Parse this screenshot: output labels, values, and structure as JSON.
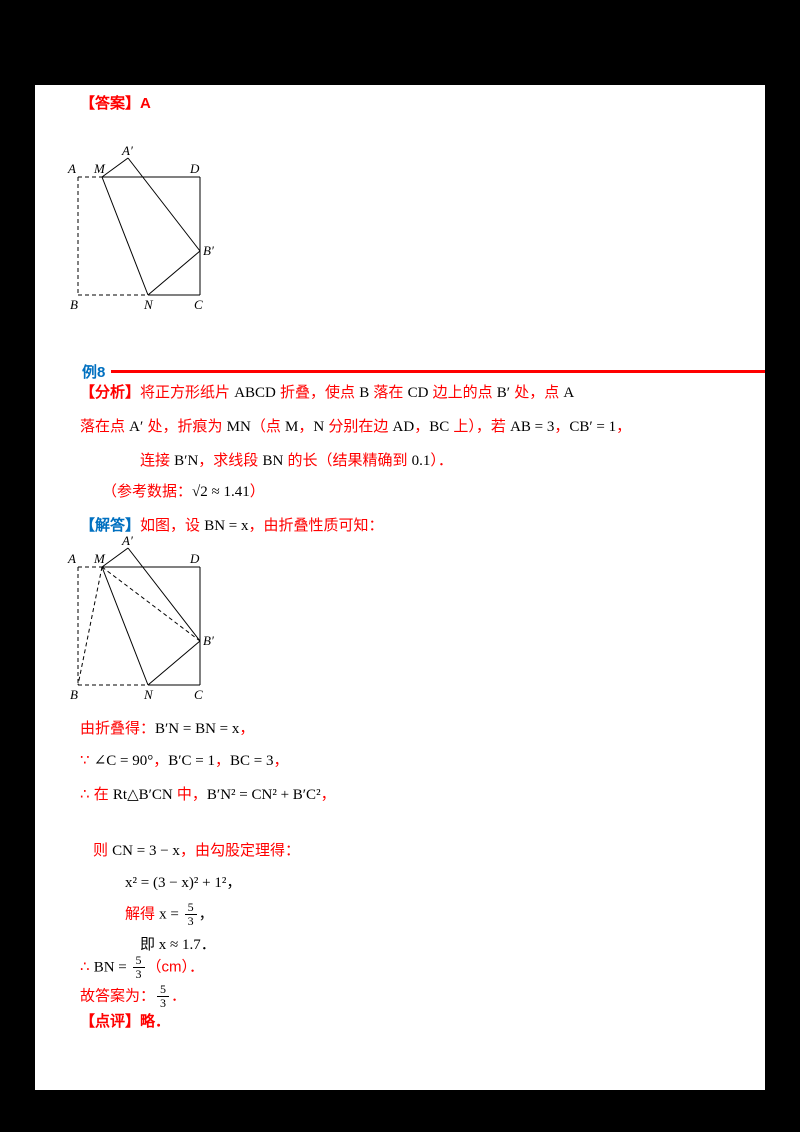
{
  "top": {
    "answer_tag": "【答案】A"
  },
  "divider": {
    "label": "例8"
  },
  "figure": {
    "labels": {
      "a": "A",
      "m": "M",
      "a_prime": "A′",
      "d": "D",
      "b_prime": "B′",
      "b": "B",
      "n": "N",
      "c": "C"
    }
  },
  "problem": {
    "l1": [
      {
        "t": "【分析】",
        "c": "tag"
      },
      {
        "t": "将正方形纸片 ",
        "c": "red"
      },
      {
        "t": "ABCD",
        "c": "blk"
      },
      {
        "t": " 折叠，使点 ",
        "c": "red"
      },
      {
        "t": "B",
        "c": "blk"
      },
      {
        "t": " 落在 ",
        "c": "red"
      },
      {
        "t": "CD",
        "c": "blk"
      },
      {
        "t": " 边上的点 ",
        "c": "red"
      },
      {
        "t": "B′",
        "c": "blk"
      },
      {
        "t": " 处，点 ",
        "c": "red"
      },
      {
        "t": "A",
        "c": "blk"
      }
    ],
    "l2": [
      {
        "t": "落在点 ",
        "c": "red"
      },
      {
        "t": "A′",
        "c": "blk"
      },
      {
        "t": " 处，折痕为 ",
        "c": "red"
      },
      {
        "t": "MN",
        "c": "blk"
      },
      {
        "t": "（点 ",
        "c": "red"
      },
      {
        "t": "M",
        "c": "blk"
      },
      {
        "t": "，",
        "c": "red"
      },
      {
        "t": "N",
        "c": "blk"
      },
      {
        "t": " 分别在边 ",
        "c": "red"
      },
      {
        "t": "AD",
        "c": "blk"
      },
      {
        "t": "，",
        "c": "red"
      },
      {
        "t": "BC",
        "c": "blk"
      },
      {
        "t": " 上），若 ",
        "c": "red"
      },
      {
        "t": "AB = 3",
        "c": "blk"
      },
      {
        "t": "，",
        "c": "red"
      },
      {
        "t": "CB′ = 1",
        "c": "blk"
      },
      {
        "t": "，",
        "c": "red"
      }
    ],
    "l3": [
      {
        "t": "连接 ",
        "c": "red"
      },
      {
        "t": "B′N",
        "c": "blk"
      },
      {
        "t": "，求线段 ",
        "c": "red"
      },
      {
        "t": "BN",
        "c": "blk"
      },
      {
        "t": " 的长（结果精确到 ",
        "c": "red"
      },
      {
        "t": "0.1",
        "c": "blk"
      },
      {
        "t": "）．",
        "c": "red"
      }
    ],
    "l4": [
      {
        "t": "（参考数据：",
        "c": "red"
      },
      {
        "t": "√2 ≈ 1.41",
        "c": "blk"
      },
      {
        "t": "）",
        "c": "red"
      }
    ]
  },
  "solution": {
    "head": [
      {
        "t": "【解答】",
        "c": "blue"
      },
      {
        "t": "如图，设 ",
        "c": "red"
      },
      {
        "t": "BN = x",
        "c": "blk"
      },
      {
        "t": "，由折叠性质可知：",
        "c": "red"
      }
    ],
    "e1": [
      {
        "t": "由折叠得：",
        "c": "red"
      },
      {
        "t": "B′N = BN = x",
        "c": "blk"
      },
      {
        "t": "，",
        "c": "red"
      }
    ],
    "e2": [
      {
        "t": "∵ ",
        "c": "red"
      },
      {
        "t": "∠C = 90°",
        "c": "blk"
      },
      {
        "t": "，",
        "c": "red"
      },
      {
        "t": "B′C = 1",
        "c": "blk"
      },
      {
        "t": "，",
        "c": "red"
      },
      {
        "t": "BC = 3",
        "c": "blk"
      },
      {
        "t": "，",
        "c": "red"
      }
    ],
    "e3": [
      {
        "t": "∴ 在 ",
        "c": "red"
      },
      {
        "t": "Rt△B′CN",
        "c": "blk"
      },
      {
        "t": " 中，",
        "c": "red"
      },
      {
        "t": "B′N² = CN² + B′C²",
        "c": "blk"
      },
      {
        "t": "，",
        "c": "red"
      }
    ],
    "e4": [
      {
        "t": "则 ",
        "c": "red"
      },
      {
        "t": "CN = 3 − x",
        "c": "blk"
      },
      {
        "t": "，由勾股定理得：",
        "c": "red"
      }
    ],
    "f1": [
      {
        "t": "x² = (3 − x)² + 1²，",
        "c": "blk"
      }
    ],
    "f2": [
      {
        "t": "解得 ",
        "c": "red"
      },
      {
        "t": "x = ",
        "c": "blk"
      },
      {
        "frac": {
          "num": "5",
          "den": "3"
        }
      },
      {
        "t": "，",
        "c": "blk"
      }
    ],
    "f3": [
      {
        "t": "即 x ≈ 1.7．",
        "c": "blk"
      }
    ],
    "r1": [
      {
        "t": "∴ ",
        "c": "red"
      },
      {
        "t": "BN = ",
        "c": "blk"
      },
      {
        "frac": {
          "num": "5",
          "den": "3"
        }
      },
      {
        "t": "（cm）．",
        "c": "red"
      }
    ],
    "r2": [
      {
        "t": "故答案为：",
        "c": "red"
      },
      {
        "frac": {
          "num": "5",
          "den": "3"
        }
      },
      {
        "t": "．",
        "c": "red"
      }
    ],
    "r3": [
      {
        "t": "【点评】略．",
        "c": "tag"
      }
    ]
  }
}
